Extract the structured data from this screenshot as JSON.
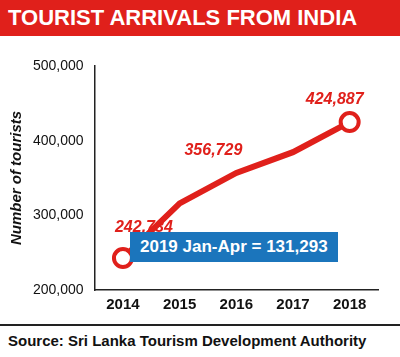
{
  "chart_data": {
    "type": "line",
    "title": "TOURIST ARRIVALS FROM INDIA",
    "y_label": "Number of tourists",
    "source": "Source: Sri Lanka Tourism Development Authority",
    "annotation": "2019 Jan-Apr = 131,293",
    "categories": [
      "2014",
      "2015",
      "2016",
      "2017",
      "2018"
    ],
    "values": [
      242734,
      316000,
      356729,
      384628,
      424887
    ],
    "value_labels": [
      "242,734",
      null,
      "356,729",
      null,
      "424,887"
    ],
    "data_labels": true,
    "color": "#e0201b",
    "marker": "circle",
    "ylim": [
      200000,
      500000
    ],
    "yticks": [
      {
        "value": 200000,
        "label": "200,000"
      },
      {
        "value": 300000,
        "label": "300,000"
      },
      {
        "value": 400000,
        "label": "400,000"
      },
      {
        "value": 500000,
        "label": "500,000"
      }
    ],
    "grid": false
  }
}
